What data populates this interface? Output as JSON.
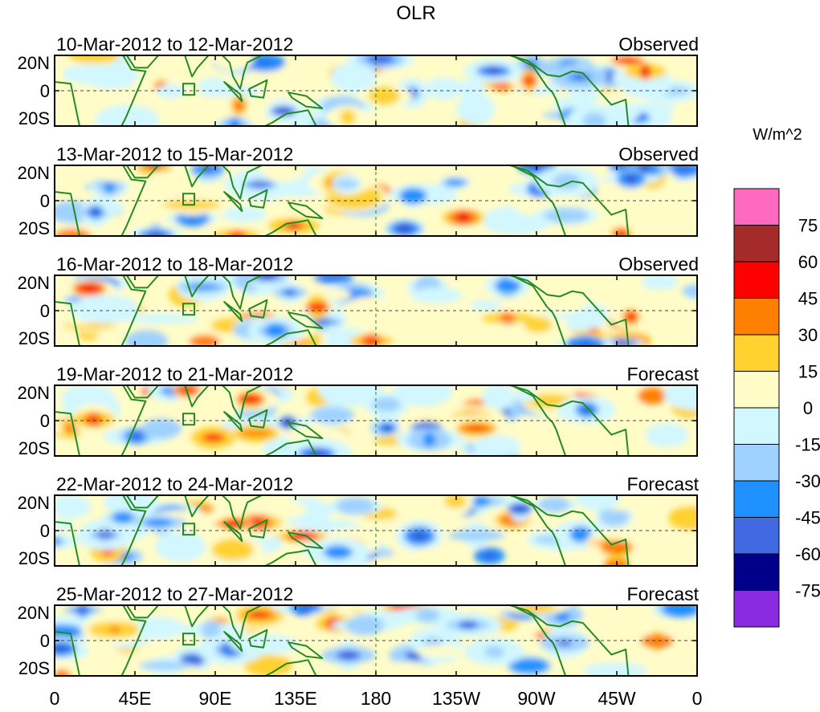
{
  "title": "OLR",
  "units": "W/m^2",
  "lat_labels": [
    "20N",
    "0",
    "20S"
  ],
  "lon_labels": [
    "0",
    "45E",
    "90E",
    "135E",
    "180",
    "135W",
    "90W",
    "45W",
    "0"
  ],
  "panels": [
    {
      "period": "10-Mar-2012 to 12-Mar-2012",
      "type": "Observed"
    },
    {
      "period": "13-Mar-2012 to 15-Mar-2012",
      "type": "Observed"
    },
    {
      "period": "16-Mar-2012 to 18-Mar-2012",
      "type": "Observed"
    },
    {
      "period": "19-Mar-2012 to 21-Mar-2012",
      "type": "Forecast"
    },
    {
      "period": "22-Mar-2012 to 24-Mar-2012",
      "type": "Forecast"
    },
    {
      "period": "25-Mar-2012 to 27-Mar-2012",
      "type": "Forecast"
    }
  ],
  "colorbar": {
    "labels": [
      "75",
      "60",
      "45",
      "30",
      "15",
      "0",
      "-15",
      "-30",
      "-45",
      "-60",
      "-75"
    ],
    "colors": [
      "#ff69c0",
      "#a52a2a",
      "#ff0000",
      "#ff7f00",
      "#ffd230",
      "#fffcc8",
      "#d2f7ff",
      "#a0d2ff",
      "#1e90ff",
      "#4169e1",
      "#00008b",
      "#8a2be2"
    ]
  },
  "colors": {
    "coast": "#228b22",
    "grid": "#228b22"
  }
}
